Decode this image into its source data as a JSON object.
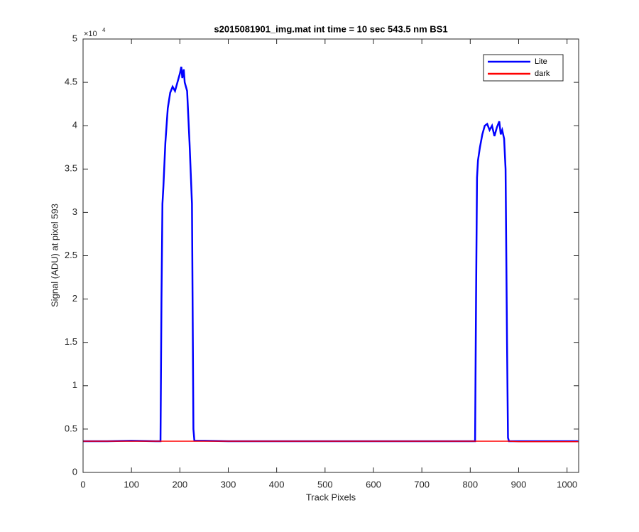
{
  "chart_data": {
    "type": "line",
    "title": "s2015081901_img.mat int time = 10 sec  543.5 nm BS1",
    "xlabel": "Track Pixels",
    "ylabel": "Signal (ADU) at pixel 593",
    "y_multiplier_base": "×10",
    "y_multiplier_exponent": "4",
    "x": [
      0,
      50,
      100,
      150,
      160,
      162,
      164,
      166,
      170,
      175,
      180,
      185,
      190,
      195,
      200,
      203,
      205,
      208,
      210,
      215,
      220,
      225,
      228,
      230,
      250,
      300,
      400,
      500,
      600,
      700,
      800,
      810,
      812,
      814,
      816,
      820,
      825,
      830,
      835,
      840,
      845,
      850,
      855,
      860,
      863,
      866,
      870,
      873,
      876,
      878,
      880,
      900,
      950,
      1000,
      1023
    ],
    "series": [
      {
        "name": "Lite",
        "color": "#0000ff",
        "values": [
          3600,
          3600,
          3650,
          3600,
          3600,
          20000,
          31000,
          33000,
          38000,
          42000,
          43800,
          44500,
          44000,
          45000,
          46000,
          46800,
          45500,
          46500,
          45000,
          44000,
          38000,
          31000,
          5000,
          3650,
          3650,
          3600,
          3600,
          3600,
          3600,
          3600,
          3600,
          3600,
          20000,
          34000,
          36000,
          37500,
          39000,
          40000,
          40200,
          39500,
          40000,
          38800,
          39800,
          40500,
          39000,
          39500,
          38500,
          35000,
          15000,
          4000,
          3600,
          3600,
          3600,
          3600,
          3600
        ]
      },
      {
        "name": "dark",
        "color": "#ff0000",
        "values": [
          3600,
          3600,
          3600,
          3600,
          3600,
          3600,
          3600,
          3600,
          3600,
          3600,
          3600,
          3600,
          3600,
          3600,
          3600,
          3600,
          3600,
          3600,
          3600,
          3600,
          3600,
          3600,
          3600,
          3600,
          3600,
          3600,
          3600,
          3600,
          3600,
          3600,
          3600,
          3600,
          3600,
          3600,
          3600,
          3600,
          3600,
          3600,
          3600,
          3600,
          3600,
          3600,
          3600,
          3600,
          3600,
          3600,
          3600,
          3600,
          3600,
          3600,
          3600,
          3550,
          3550,
          3550,
          3550
        ]
      }
    ],
    "xlim": [
      0,
      1024
    ],
    "xticks": [
      0,
      100,
      200,
      300,
      400,
      500,
      600,
      700,
      800,
      900,
      1000
    ],
    "ylim": [
      0,
      50000
    ],
    "yticks": [
      {
        "value": 0,
        "label": "0"
      },
      {
        "value": 5000,
        "label": "0.5"
      },
      {
        "value": 10000,
        "label": "1"
      },
      {
        "value": 15000,
        "label": "1.5"
      },
      {
        "value": 20000,
        "label": "2"
      },
      {
        "value": 25000,
        "label": "2.5"
      },
      {
        "value": 30000,
        "label": "3"
      },
      {
        "value": 35000,
        "label": "3.5"
      },
      {
        "value": 40000,
        "label": "4"
      },
      {
        "value": 45000,
        "label": "4.5"
      },
      {
        "value": 50000,
        "label": "5"
      }
    ],
    "grid": false,
    "legend": "top-right"
  }
}
